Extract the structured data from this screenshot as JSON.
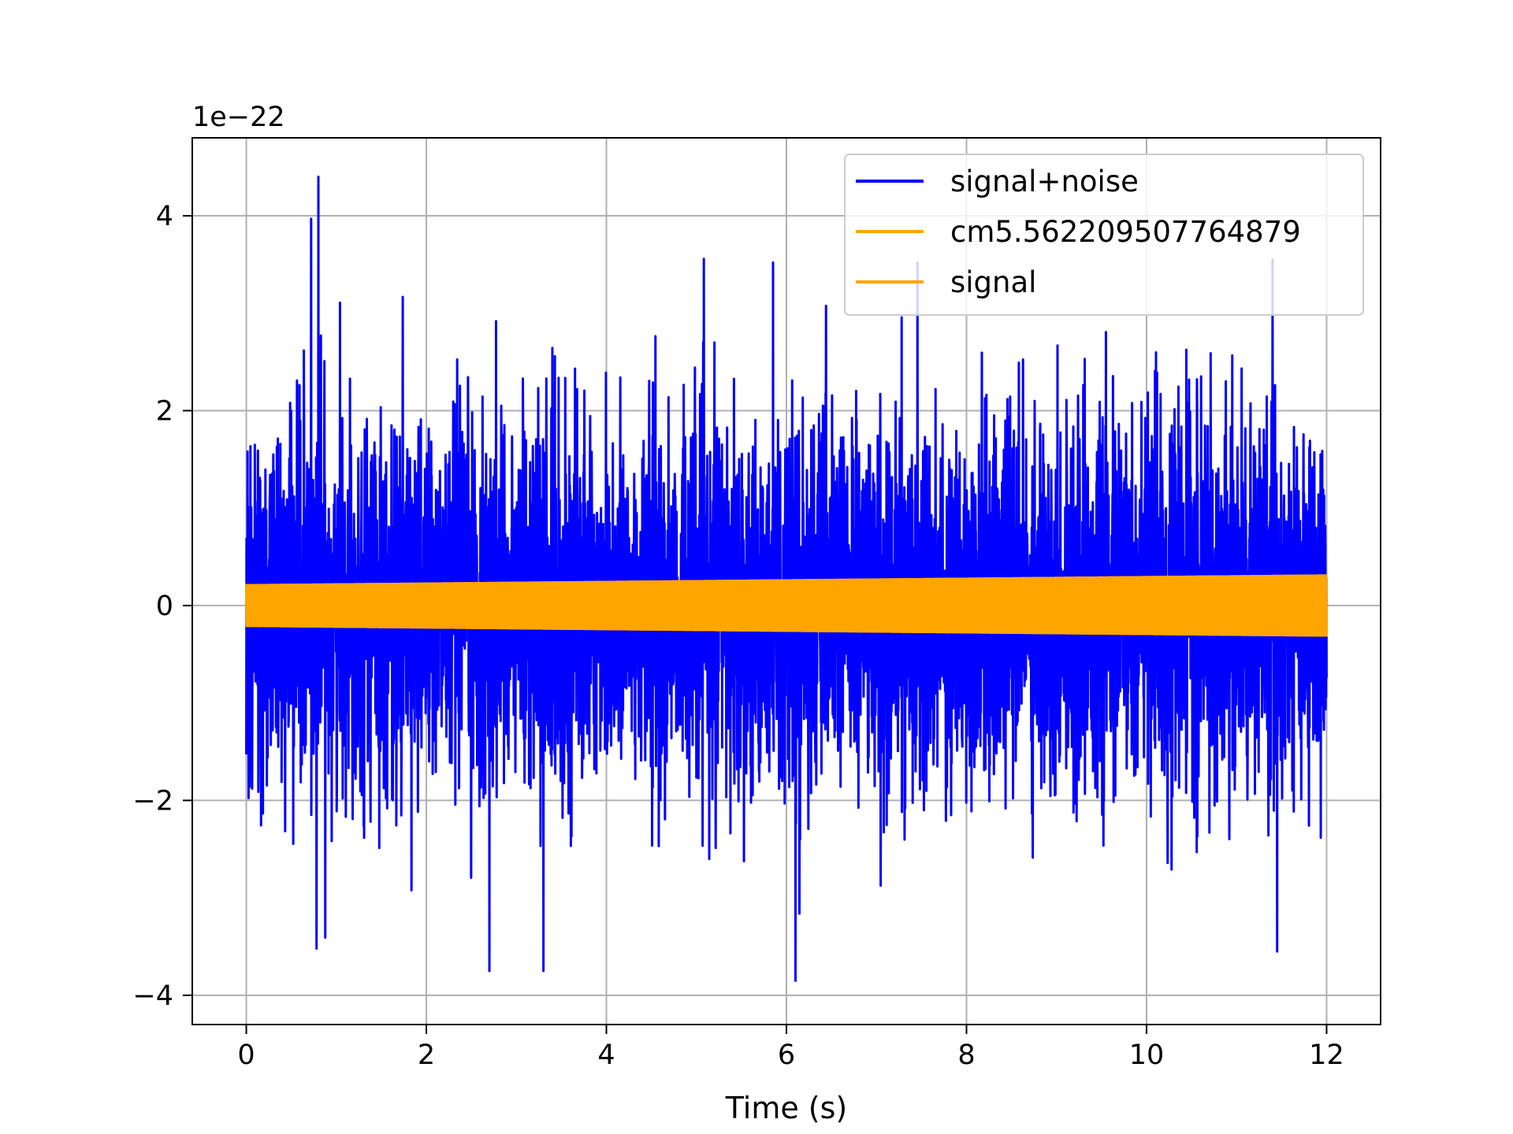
{
  "chart_data": {
    "type": "line",
    "title": "",
    "xlabel": "Time (s)",
    "ylabel": "",
    "y_offset_label": "1e−22",
    "y_scale_factor": 1e-22,
    "xlim": [
      -0.6,
      12.6
    ],
    "ylim": [
      -4.3,
      4.8
    ],
    "x_ticks": [
      0,
      2,
      4,
      6,
      8,
      10,
      12
    ],
    "y_ticks": [
      -4,
      -2,
      0,
      2,
      4
    ],
    "x_tick_labels": [
      "0",
      "2",
      "4",
      "6",
      "8",
      "10",
      "12"
    ],
    "y_tick_labels": [
      "−4",
      "−2",
      "0",
      "2",
      "4"
    ],
    "grid": true,
    "legend_position": "top-right",
    "x_range": [
      0,
      12
    ],
    "series": [
      {
        "name": "signal+noise",
        "color": "#0000ff",
        "kind": "noise",
        "envelope_max": 4.4,
        "envelope_min": -3.85,
        "typical_amplitude": 1.5
      },
      {
        "name": "cm5.562209507764879",
        "color": "#ffa500",
        "kind": "sinusoid",
        "amplitude_start": 0.22,
        "amplitude_end": 0.32
      },
      {
        "name": "signal",
        "color": "#ffa500",
        "kind": "sinusoid",
        "amplitude_start": 0.22,
        "amplitude_end": 0.32
      }
    ],
    "notable_peaks": [
      {
        "x": 0.8,
        "y": 4.4
      },
      {
        "x": 0.72,
        "y": 3.97
      },
      {
        "x": 5.85,
        "y": 3.52
      },
      {
        "x": 11.4,
        "y": 3.55
      },
      {
        "x": 6.1,
        "y": -3.85
      },
      {
        "x": 2.7,
        "y": -3.75
      },
      {
        "x": 3.3,
        "y": -3.75
      },
      {
        "x": 11.45,
        "y": -3.55
      },
      {
        "x": 0.78,
        "y": -3.52
      }
    ]
  }
}
